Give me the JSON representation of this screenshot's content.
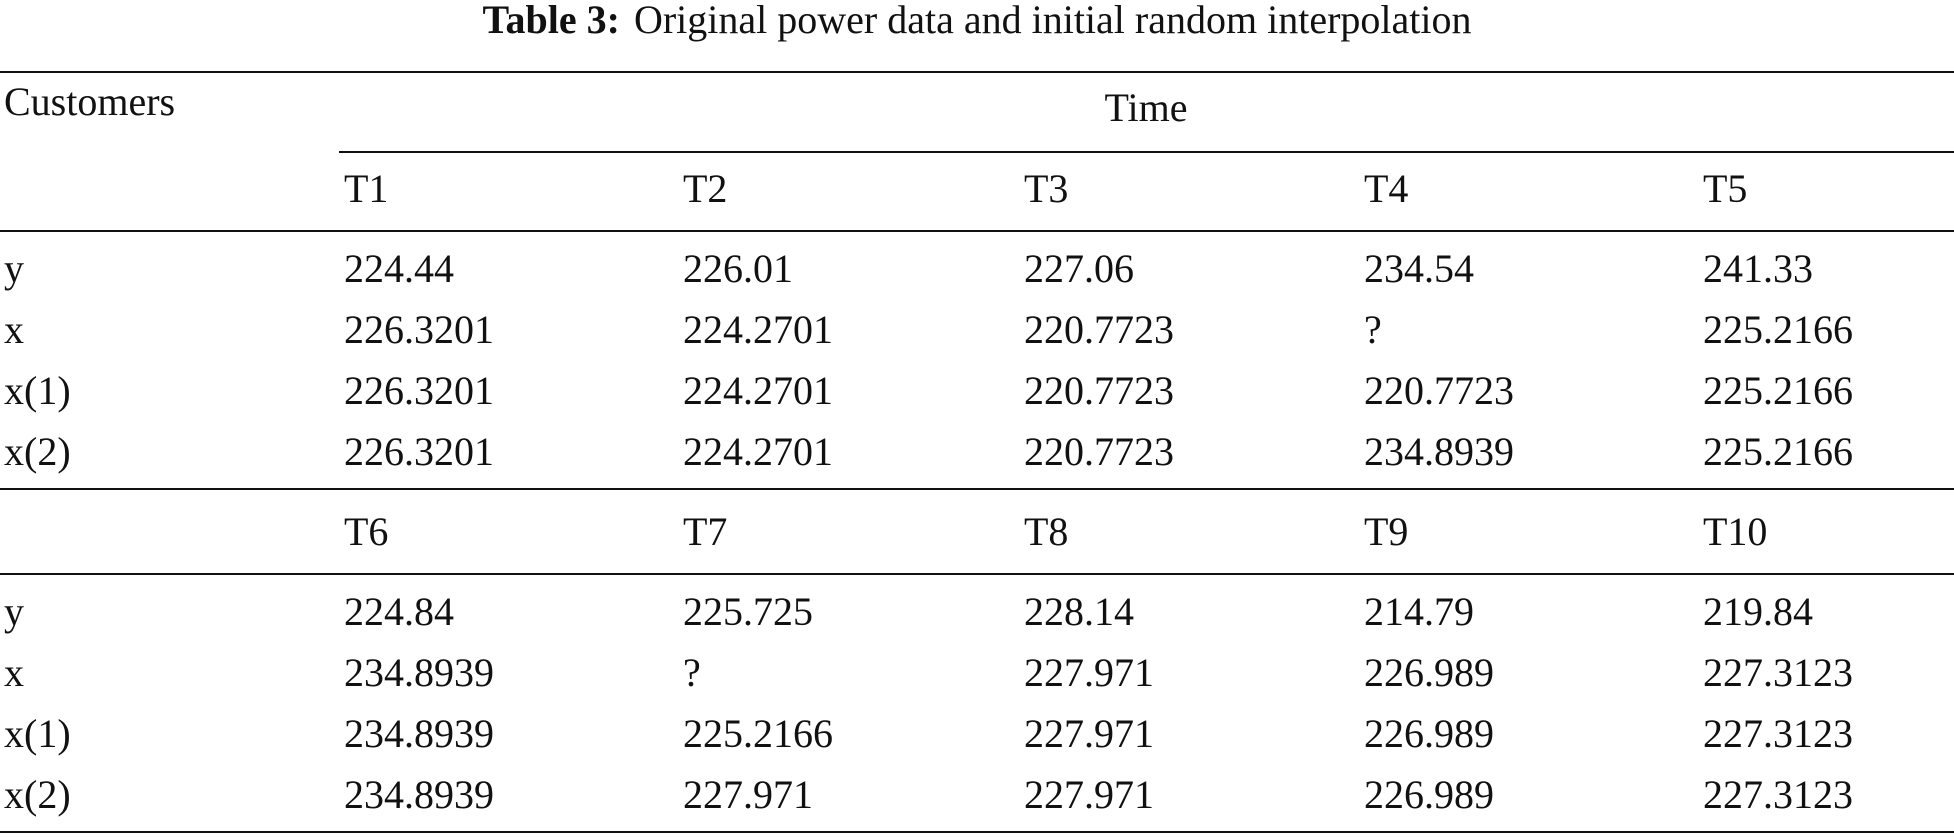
{
  "title": {
    "label": "Table 3:",
    "text": "Original power data and initial random interpolation"
  },
  "table": {
    "row_header": "Customers",
    "column_group": "Time",
    "blocks": [
      {
        "columns": [
          "T1",
          "T2",
          "T3",
          "T4",
          "T5"
        ],
        "rows": [
          {
            "label": "y",
            "cells": [
              "224.44",
              "226.01",
              "227.06",
              "234.54",
              "241.33"
            ]
          },
          {
            "label": "x",
            "cells": [
              "226.3201",
              "224.2701",
              "220.7723",
              "?",
              "225.2166"
            ]
          },
          {
            "label": "x(1)",
            "cells": [
              "226.3201",
              "224.2701",
              "220.7723",
              "220.7723",
              "225.2166"
            ]
          },
          {
            "label": "x(2)",
            "cells": [
              "226.3201",
              "224.2701",
              "220.7723",
              "234.8939",
              "225.2166"
            ]
          }
        ]
      },
      {
        "columns": [
          "T6",
          "T7",
          "T8",
          "T9",
          "T10"
        ],
        "rows": [
          {
            "label": "y",
            "cells": [
              "224.84",
              "225.725",
              "228.14",
              "214.79",
              "219.84"
            ]
          },
          {
            "label": "x",
            "cells": [
              "234.8939",
              "?",
              "227.971",
              "226.989",
              "227.3123"
            ]
          },
          {
            "label": "x(1)",
            "cells": [
              "234.8939",
              "225.2166",
              "227.971",
              "226.989",
              "227.3123"
            ]
          },
          {
            "label": "x(2)",
            "cells": [
              "234.8939",
              "227.971",
              "227.971",
              "226.989",
              "227.3123"
            ]
          }
        ]
      }
    ]
  }
}
